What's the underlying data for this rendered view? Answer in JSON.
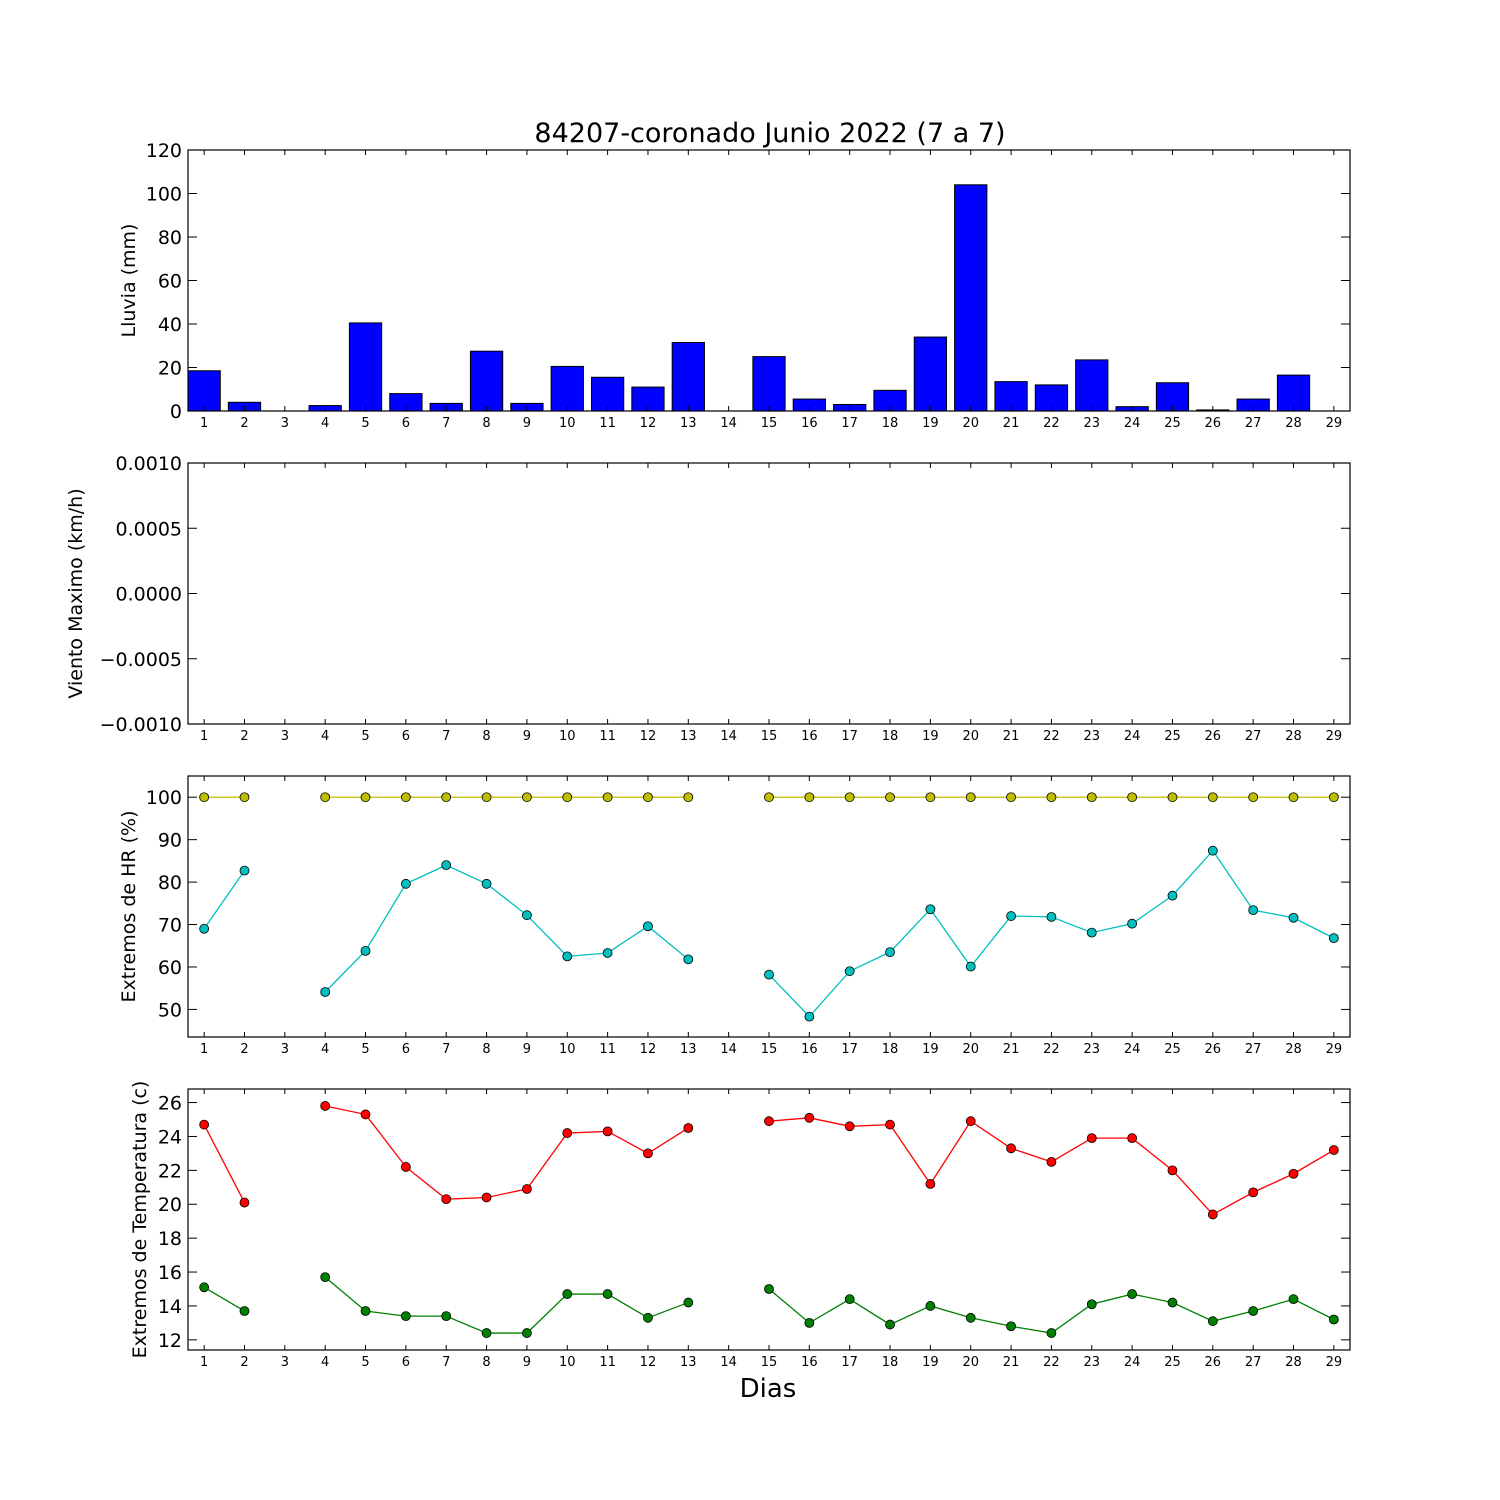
{
  "figure": {
    "title": "84207-coronado Junio 2022  (7 a 7)",
    "xlabel": "Dias"
  },
  "chart_data": [
    {
      "type": "bar",
      "ylabel": "Lluvia (mm)",
      "ylim": [
        0,
        120
      ],
      "yticks": [
        "0",
        "20",
        "40",
        "60",
        "80",
        "100",
        "120"
      ],
      "categories": [
        "1",
        "2",
        "3",
        "4",
        "5",
        "6",
        "7",
        "8",
        "9",
        "10",
        "11",
        "12",
        "13",
        "14",
        "15",
        "16",
        "17",
        "18",
        "19",
        "20",
        "21",
        "22",
        "23",
        "24",
        "25",
        "26",
        "27",
        "28",
        "29"
      ],
      "values": [
        18.5,
        4,
        0,
        2.5,
        40.5,
        8,
        3.5,
        27.5,
        3.5,
        20.5,
        15.5,
        11,
        31.5,
        0,
        25,
        5.5,
        3,
        9.5,
        34,
        104,
        13.5,
        12,
        23.5,
        2,
        13,
        0.5,
        5.5,
        16.5,
        0
      ],
      "color": "#0000ff"
    },
    {
      "type": "line",
      "ylabel": "Viento Maximo (km/h)",
      "ylim": [
        -0.001,
        0.001
      ],
      "yticks": [
        "−0.0010",
        "−0.0005",
        "0.0000",
        "0.0005",
        "0.0010"
      ],
      "categories": [
        "1",
        "2",
        "3",
        "4",
        "5",
        "6",
        "7",
        "8",
        "9",
        "10",
        "11",
        "12",
        "13",
        "14",
        "15",
        "16",
        "17",
        "18",
        "19",
        "20",
        "21",
        "22",
        "23",
        "24",
        "25",
        "26",
        "27",
        "28",
        "29"
      ],
      "series": []
    },
    {
      "type": "line",
      "ylabel": "Extremos de HR (%)",
      "ylim": [
        43.5,
        105
      ],
      "yticks": [
        "50",
        "60",
        "70",
        "80",
        "90",
        "100"
      ],
      "categories": [
        "1",
        "2",
        "3",
        "4",
        "5",
        "6",
        "7",
        "8",
        "9",
        "10",
        "11",
        "12",
        "13",
        "14",
        "15",
        "16",
        "17",
        "18",
        "19",
        "20",
        "21",
        "22",
        "23",
        "24",
        "25",
        "26",
        "27",
        "28",
        "29"
      ],
      "series": [
        {
          "color": "#bfbf00",
          "values": [
            100,
            100,
            null,
            100,
            100,
            100,
            100,
            100,
            100,
            100,
            100,
            100,
            100,
            null,
            100,
            100,
            100,
            100,
            100,
            100,
            100,
            100,
            100,
            100,
            100,
            100,
            100,
            100,
            100
          ]
        },
        {
          "color": "#00bfbf",
          "values": [
            69,
            82.7,
            null,
            54.1,
            63.8,
            79.6,
            84,
            79.6,
            72.2,
            62.5,
            63.3,
            69.6,
            61.8,
            null,
            58.2,
            48.3,
            59,
            63.5,
            73.6,
            60.1,
            72,
            71.8,
            68.1,
            70.2,
            76.8,
            87.4,
            73.4,
            71.6,
            66.8
          ]
        }
      ]
    },
    {
      "type": "line",
      "ylabel": "Extremos de Temperatura (c)",
      "ylim": [
        11.4,
        26.8
      ],
      "yticks": [
        "12",
        "14",
        "16",
        "18",
        "20",
        "22",
        "24",
        "26"
      ],
      "categories": [
        "1",
        "2",
        "3",
        "4",
        "5",
        "6",
        "7",
        "8",
        "9",
        "10",
        "11",
        "12",
        "13",
        "14",
        "15",
        "16",
        "17",
        "18",
        "19",
        "20",
        "21",
        "22",
        "23",
        "24",
        "25",
        "26",
        "27",
        "28",
        "29"
      ],
      "series": [
        {
          "color": "#ff0000",
          "values": [
            24.7,
            20.1,
            null,
            25.8,
            25.3,
            22.2,
            20.3,
            20.4,
            20.9,
            24.2,
            24.3,
            23,
            24.5,
            null,
            24.9,
            25.1,
            24.6,
            24.7,
            21.2,
            24.9,
            23.3,
            22.5,
            23.9,
            23.9,
            22,
            19.4,
            20.7,
            21.8,
            23.2
          ]
        },
        {
          "color": "#008000",
          "values": [
            15.1,
            13.7,
            null,
            15.7,
            13.7,
            13.4,
            13.4,
            12.4,
            12.4,
            14.7,
            14.7,
            13.3,
            14.2,
            null,
            15,
            13,
            14.4,
            12.9,
            14,
            13.3,
            12.8,
            12.4,
            14.1,
            14.7,
            14.2,
            13.1,
            13.7,
            14.4,
            13.2
          ]
        }
      ]
    }
  ]
}
